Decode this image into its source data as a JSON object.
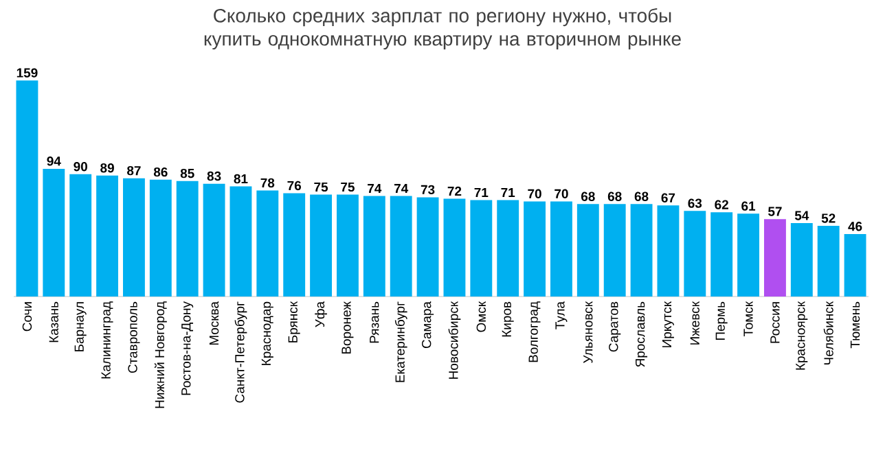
{
  "chart_data": {
    "type": "bar",
    "title": "Сколько средних зарплат по региону нужно, чтобы купить однокомнатную квартиру на вторичном рынке",
    "categories": [
      "Сочи",
      "Казань",
      "Барнаул",
      "Калининград",
      "Ставрополь",
      "Нижний Новгород",
      "Ростов-на-Дону",
      "Москва",
      "Санкт-Петербург",
      "Краснодар",
      "Брянск",
      "Уфа",
      "Воронеж",
      "Рязань",
      "Екатеринбург",
      "Самара",
      "Новосибирск",
      "Омск",
      "Киров",
      "Волгоград",
      "Тула",
      "Ульяновск",
      "Саратов",
      "Ярославль",
      "Иркутск",
      "Ижевск",
      "Пермь",
      "Томск",
      "Россия",
      "Красноярск",
      "Челябинск",
      "Тюмень"
    ],
    "values": [
      159,
      94,
      90,
      89,
      87,
      86,
      85,
      83,
      81,
      78,
      76,
      75,
      75,
      74,
      74,
      73,
      72,
      71,
      71,
      70,
      70,
      68,
      68,
      68,
      67,
      63,
      62,
      61,
      57,
      54,
      52,
      46
    ],
    "colors": [
      "#00b0f0",
      "#00b0f0",
      "#00b0f0",
      "#00b0f0",
      "#00b0f0",
      "#00b0f0",
      "#00b0f0",
      "#00b0f0",
      "#00b0f0",
      "#00b0f0",
      "#00b0f0",
      "#00b0f0",
      "#00b0f0",
      "#00b0f0",
      "#00b0f0",
      "#00b0f0",
      "#00b0f0",
      "#00b0f0",
      "#00b0f0",
      "#00b0f0",
      "#00b0f0",
      "#00b0f0",
      "#00b0f0",
      "#00b0f0",
      "#00b0f0",
      "#00b0f0",
      "#00b0f0",
      "#00b0f0",
      "#b04ff0",
      "#00b0f0",
      "#00b0f0",
      "#00b0f0"
    ],
    "data_labels": true
  }
}
